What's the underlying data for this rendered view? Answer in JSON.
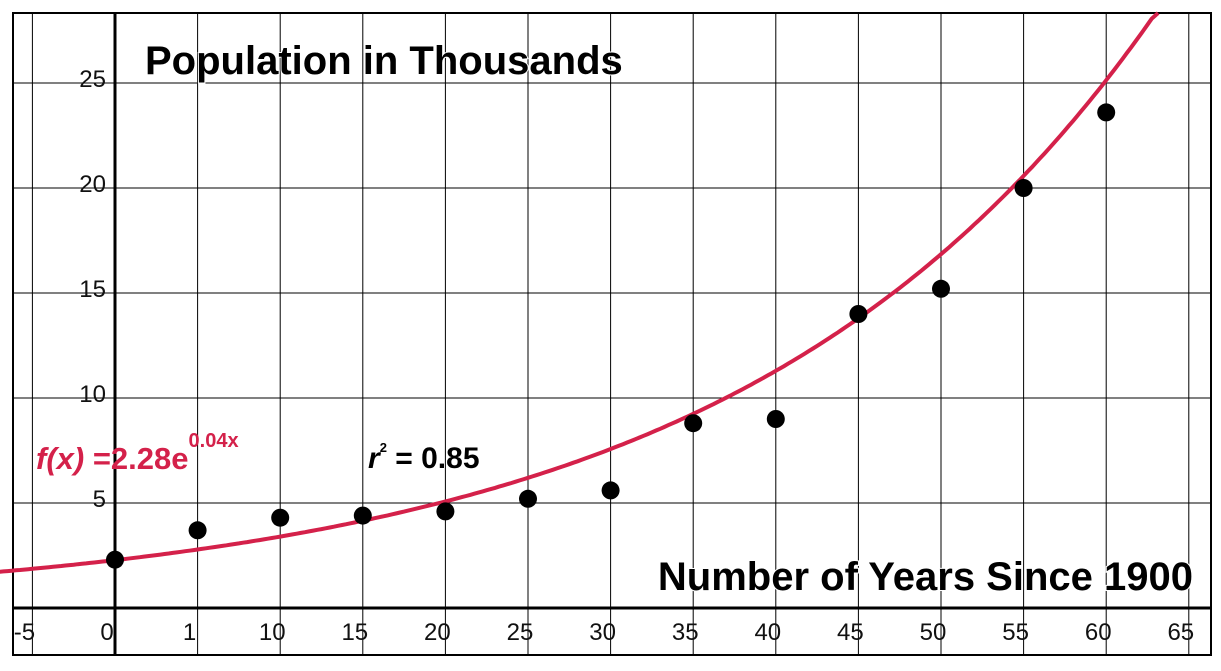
{
  "chart_data": {
    "type": "scatter",
    "title": "Population in Thousands",
    "xlabel": "Number of Years Since 1900",
    "ylabel": "",
    "xlim": [
      -7.5,
      67.5
    ],
    "ylim": [
      0,
      28
    ],
    "x_ticks": [
      -5,
      0,
      1,
      10,
      15,
      20,
      25,
      30,
      35,
      40,
      45,
      50,
      55,
      60,
      65
    ],
    "y_ticks": [
      5,
      10,
      15,
      20,
      25
    ],
    "grid": true,
    "series": [
      {
        "type": "scatter",
        "color": "#000000",
        "points": [
          {
            "x": 0,
            "y": 2.3
          },
          {
            "x": 5,
            "y": 3.7
          },
          {
            "x": 10,
            "y": 4.3
          },
          {
            "x": 15,
            "y": 4.4
          },
          {
            "x": 20,
            "y": 4.6
          },
          {
            "x": 25,
            "y": 5.2
          },
          {
            "x": 30,
            "y": 5.6
          },
          {
            "x": 35,
            "y": 8.8
          },
          {
            "x": 40,
            "y": 9.0
          },
          {
            "x": 45,
            "y": 14.0
          },
          {
            "x": 50,
            "y": 15.2
          },
          {
            "x": 55,
            "y": 20.0
          },
          {
            "x": 60,
            "y": 23.6
          }
        ]
      },
      {
        "type": "line",
        "color": "#d4214a",
        "fit": {
          "a": 2.28,
          "b": 0.04,
          "form": "exponential"
        }
      }
    ],
    "annotations": {
      "equation": {
        "prefix": "f(x)",
        "body": " =2.28e",
        "exponent": "0.04x",
        "color": "#d4214a"
      },
      "r2": {
        "symbol": "r",
        "sup": "2",
        "rest": " = 0.85"
      }
    }
  }
}
